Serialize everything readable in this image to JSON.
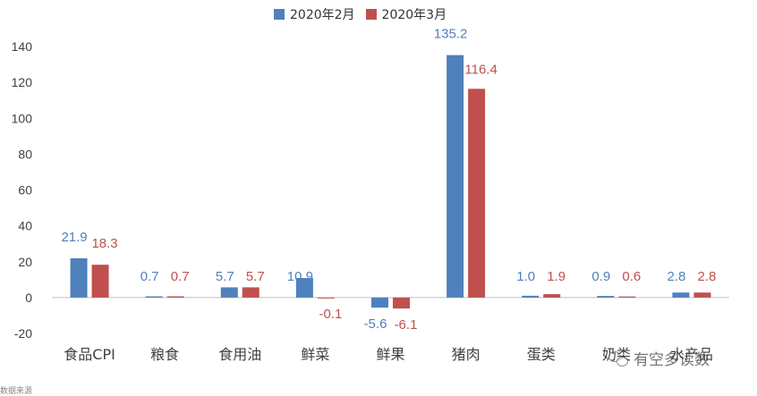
{
  "chart_data": {
    "type": "bar",
    "categories": [
      "食品CPI",
      "粮食",
      "食用油",
      "鲜菜",
      "鲜果",
      "猪肉",
      "蛋类",
      "奶类",
      "水产品"
    ],
    "series": [
      {
        "name": "2020年2月",
        "values": [
          21.9,
          0.7,
          5.7,
          10.9,
          -5.6,
          135.2,
          1.0,
          0.9,
          2.8
        ],
        "labels": [
          "21.9",
          "0.7",
          "5.7",
          "10.9",
          "-5.6",
          "135.2",
          "1.0",
          "0.9",
          "2.8"
        ],
        "color": "#4f81bd"
      },
      {
        "name": "2020年3月",
        "values": [
          18.3,
          0.7,
          5.7,
          -0.1,
          -6.1,
          116.4,
          1.9,
          0.6,
          2.8
        ],
        "labels": [
          "18.3",
          "0.7",
          "5.7",
          "-0.1",
          "-6.1",
          "116.4",
          "1.9",
          "0.6",
          "2.8"
        ],
        "color": "#c0504d"
      }
    ],
    "ylim": [
      -20,
      140
    ],
    "yticks": [
      -20,
      0,
      20,
      40,
      60,
      80,
      100,
      120,
      140
    ],
    "grid": false,
    "legend_position": "top-center",
    "title": "",
    "xlabel": "",
    "ylabel": ""
  },
  "watermark": {
    "text": "有空多读数",
    "icon": "wechat-bubble-icon"
  },
  "footer_fragment": "数据来源"
}
